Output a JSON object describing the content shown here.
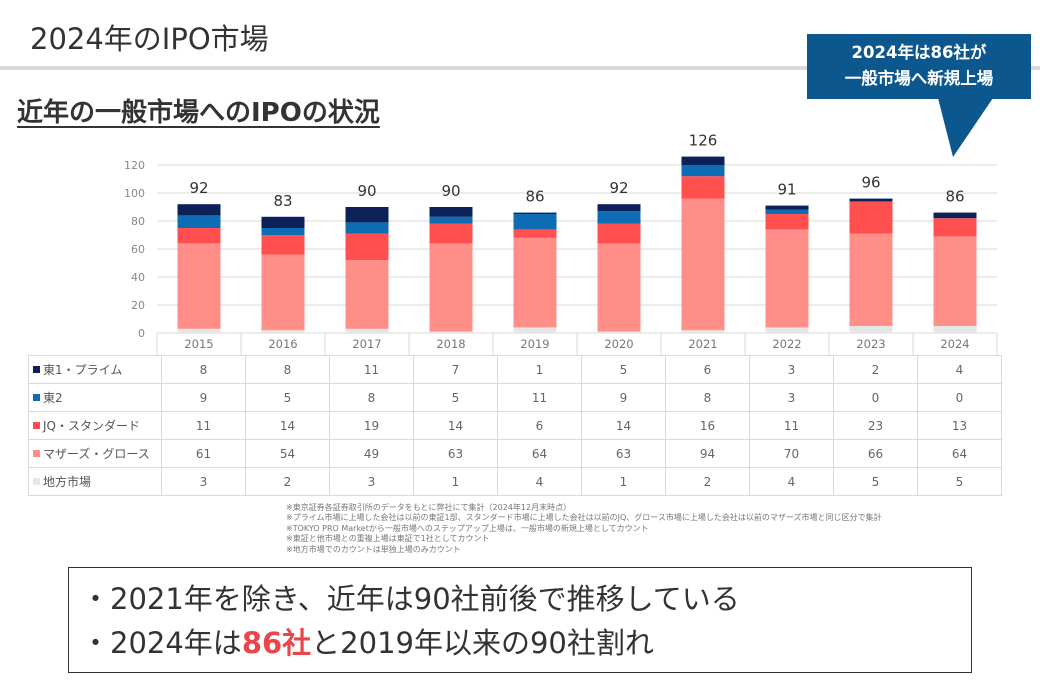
{
  "slide": {
    "title": "2024年のIPO市場",
    "heading": "近年の一般市場へのIPOの状況"
  },
  "callout": {
    "line1": "2024年は86社が",
    "line2": "一般市場へ新規上場",
    "color": "#0c578e"
  },
  "chart_data": {
    "type": "bar",
    "stacked": true,
    "title": "近年の一般市場へのIPOの状況",
    "xlabel": "",
    "ylabel": "",
    "ylim": [
      0,
      120
    ],
    "yticks": [
      0,
      20,
      40,
      60,
      80,
      100,
      120
    ],
    "grid": true,
    "legend": "table-left",
    "categories": [
      "2015",
      "2016",
      "2017",
      "2018",
      "2019",
      "2020",
      "2021",
      "2022",
      "2023",
      "2024"
    ],
    "totals": [
      92,
      83,
      90,
      90,
      86,
      92,
      126,
      91,
      96,
      86
    ],
    "series": [
      {
        "name": "地方市場",
        "color": "#e6e6e6",
        "values": [
          3,
          2,
          3,
          1,
          4,
          1,
          2,
          4,
          5,
          5
        ]
      },
      {
        "name": "マザーズ・グロース",
        "color": "#ff8f88",
        "values": [
          61,
          54,
          49,
          63,
          64,
          63,
          94,
          70,
          66,
          64
        ]
      },
      {
        "name": "JQ・スタンダード",
        "color": "#ff4f4f",
        "values": [
          11,
          14,
          19,
          14,
          6,
          14,
          16,
          11,
          23,
          13
        ]
      },
      {
        "name": "東2",
        "color": "#0e6cb5",
        "values": [
          9,
          5,
          8,
          5,
          11,
          9,
          8,
          3,
          0,
          0
        ]
      },
      {
        "name": "東1・プライム",
        "color": "#0b2158",
        "values": [
          8,
          8,
          11,
          7,
          1,
          5,
          6,
          3,
          2,
          4
        ]
      }
    ]
  },
  "table": {
    "rows": [
      {
        "name": "東1・プライム",
        "color": "#0b2158",
        "values": [
          "8",
          "8",
          "11",
          "7",
          "1",
          "5",
          "6",
          "3",
          "2",
          "4"
        ]
      },
      {
        "name": "東2",
        "color": "#0e6cb5",
        "values": [
          "9",
          "5",
          "8",
          "5",
          "11",
          "9",
          "8",
          "3",
          "0",
          "0"
        ]
      },
      {
        "name": "JQ・スタンダード",
        "color": "#ff4f4f",
        "values": [
          "11",
          "14",
          "19",
          "14",
          "6",
          "14",
          "16",
          "11",
          "23",
          "13"
        ]
      },
      {
        "name": "マザーズ・グロース",
        "color": "#ff8f88",
        "values": [
          "61",
          "54",
          "49",
          "63",
          "64",
          "63",
          "94",
          "70",
          "66",
          "64"
        ]
      },
      {
        "name": "地方市場",
        "color": "#e6e6e6",
        "values": [
          "3",
          "2",
          "3",
          "1",
          "4",
          "1",
          "2",
          "4",
          "5",
          "5"
        ]
      }
    ]
  },
  "footnotes": [
    "※東京証券各証券取引所のデータをもとに弊社にて集計（2024年12月末時点）",
    "※プライム市場に上場した会社は以前の東証1部、スタンダード市場に上場した会社は以前のJQ、グロース市場に上場した会社は以前のマザーズ市場と同じ区分で集計",
    "※TOKYO PRO Marketから一般市場へのステップアップ上場は、一般市場の新規上場としてカウント",
    "※東証と他市場との重複上場は東証で1社としてカウント",
    "※地方市場でのカウントは単独上場のみカウント"
  ],
  "summary": {
    "line1": "・2021年を除き、近年は90社前後で推移している",
    "line2_prefix": "・2024年は",
    "line2_highlight": "86社",
    "line2_suffix": "と2019年以来の90社割れ",
    "highlight_color": "#e8464a"
  }
}
